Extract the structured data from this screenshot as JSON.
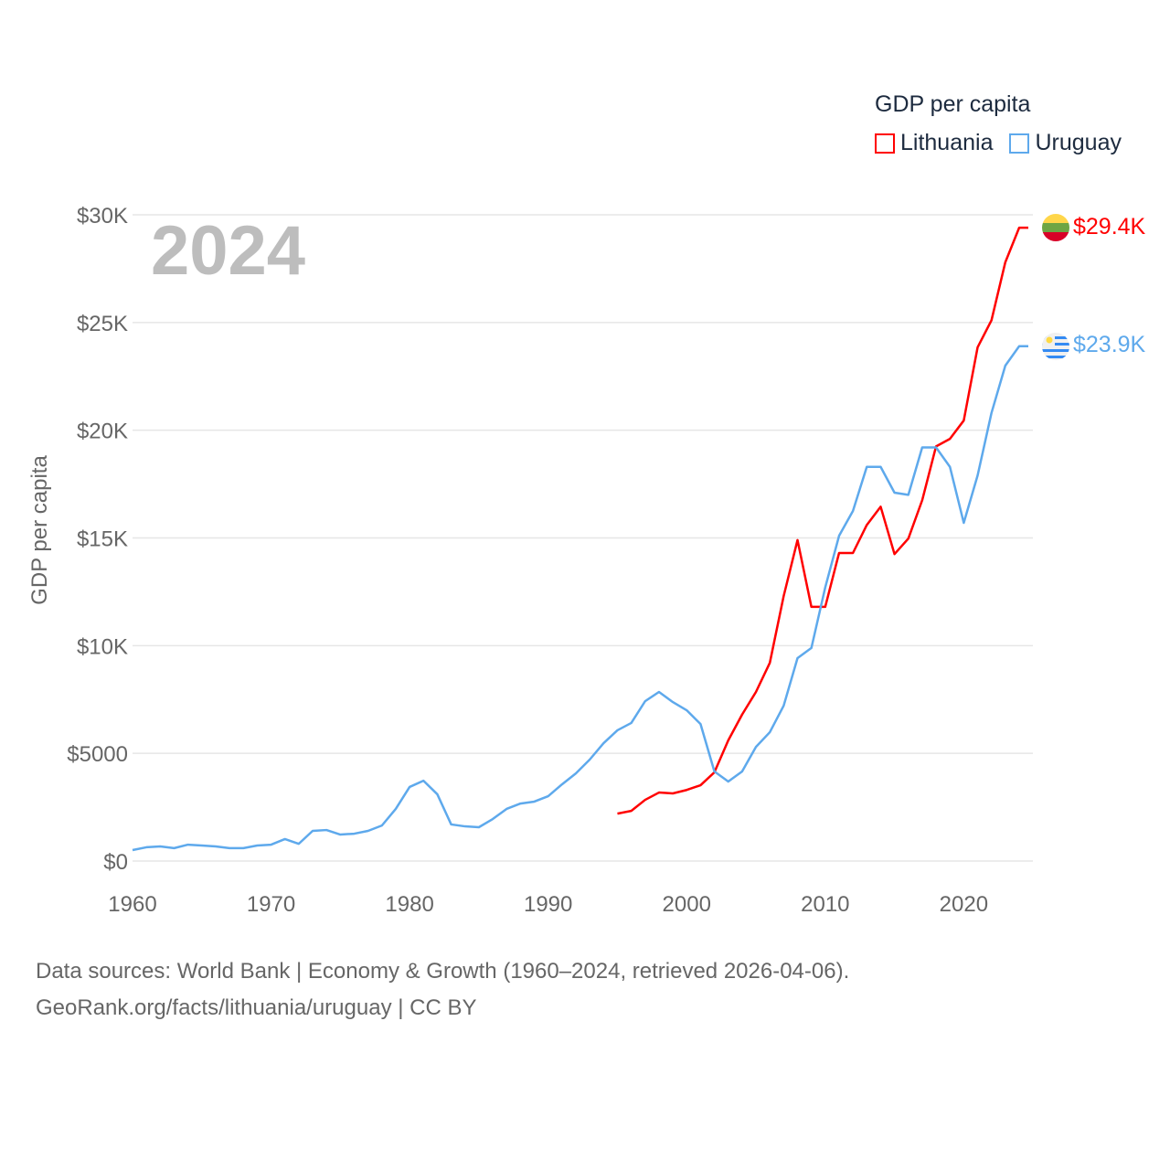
{
  "chart_data": {
    "type": "line",
    "title": "GDP per capita",
    "year_label": "2024",
    "ylabel": "GDP per capita",
    "xlabel": "",
    "xlim": [
      1960,
      2024
    ],
    "ylim": [
      0,
      30000
    ],
    "grid": true,
    "legend_placement": "top-right",
    "x_ticks": [
      1960,
      1970,
      1980,
      1990,
      2000,
      2010,
      2020
    ],
    "x_tick_labels": [
      "1960",
      "1970",
      "1980",
      "1990",
      "2000",
      "2010",
      "2020"
    ],
    "y_ticks": [
      0,
      5000,
      10000,
      15000,
      20000,
      25000,
      30000
    ],
    "y_tick_labels": [
      "$0",
      "$5000",
      "$10K",
      "$15K",
      "$20K",
      "$25K",
      "$30K"
    ],
    "series": [
      {
        "name": "Lithuania",
        "color": "#ff0000",
        "end_label": "$29.4K",
        "x_start": 1995,
        "values": [
          2200,
          2330,
          2840,
          3180,
          3140,
          3300,
          3520,
          4120,
          5600,
          6800,
          7850,
          9200,
          12300,
          14900,
          11800,
          11800,
          14300,
          14300,
          15600,
          16450,
          14250,
          14970,
          16750,
          19250,
          19600,
          20450,
          23850,
          25100,
          27800,
          29400
        ]
      },
      {
        "name": "Uruguay",
        "color": "#5ea9ec",
        "end_label": "$23.9K",
        "x_start": 1960,
        "values": [
          510,
          640,
          680,
          600,
          760,
          720,
          680,
          600,
          600,
          720,
          760,
          1020,
          800,
          1400,
          1440,
          1230,
          1270,
          1400,
          1650,
          2420,
          3440,
          3730,
          3100,
          1700,
          1610,
          1570,
          1950,
          2420,
          2670,
          2760,
          3010,
          3560,
          4070,
          4710,
          5470,
          6070,
          6410,
          7420,
          7850,
          7380,
          7000,
          6360,
          4160,
          3690,
          4160,
          5300,
          5980,
          7210,
          9420,
          9890,
          12700,
          15100,
          16250,
          18300,
          18300,
          17100,
          17000,
          19200,
          19200,
          18300,
          15700,
          17900,
          20800,
          23000,
          23900
        ]
      }
    ]
  },
  "footer": {
    "line1": "Data sources: World Bank | Economy & Growth (1960–2024, retrieved 2026-04-06).",
    "line2": "GeoRank.org/facts/lithuania/uruguay | CC BY"
  }
}
